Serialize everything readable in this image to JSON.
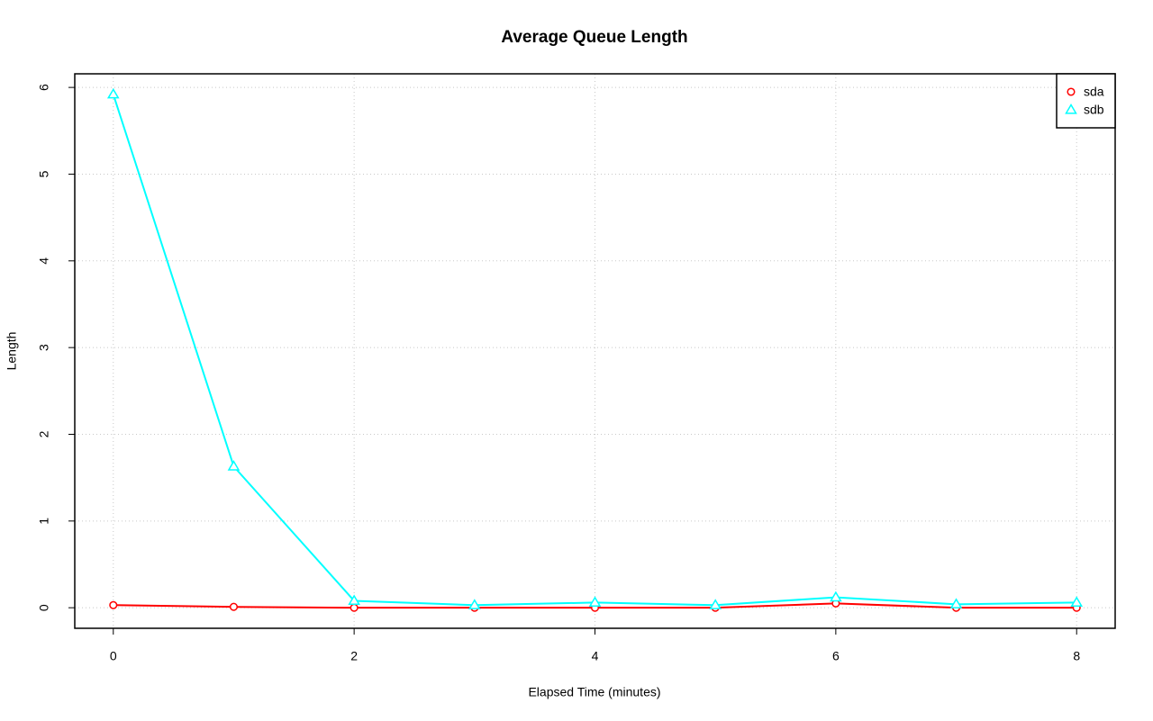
{
  "chart_data": {
    "type": "line",
    "title": "Average Queue Length",
    "x_label": "Elapsed Time (minutes)",
    "y_label": "Length",
    "x": [
      0,
      1,
      2,
      3,
      4,
      5,
      6,
      7,
      8
    ],
    "series": [
      {
        "name": "sda",
        "color": "#ff0000",
        "marker": "circle",
        "values": [
          0.03,
          0.01,
          0,
          0,
          0,
          0,
          0.05,
          0,
          0
        ]
      },
      {
        "name": "sdb",
        "color": "#00ffff",
        "marker": "triangle",
        "values": [
          5.92,
          1.63,
          0.08,
          0.03,
          0.06,
          0.03,
          0.12,
          0.04,
          0.06
        ]
      }
    ],
    "xlim": [
      -0.32,
      8.32
    ],
    "ylim": [
      -0.237,
      6.157
    ],
    "xticks": [
      0,
      2,
      4,
      6,
      8
    ],
    "yticks": [
      0,
      1,
      2,
      3,
      4,
      5,
      6
    ],
    "grid": true,
    "legend": "topright"
  }
}
